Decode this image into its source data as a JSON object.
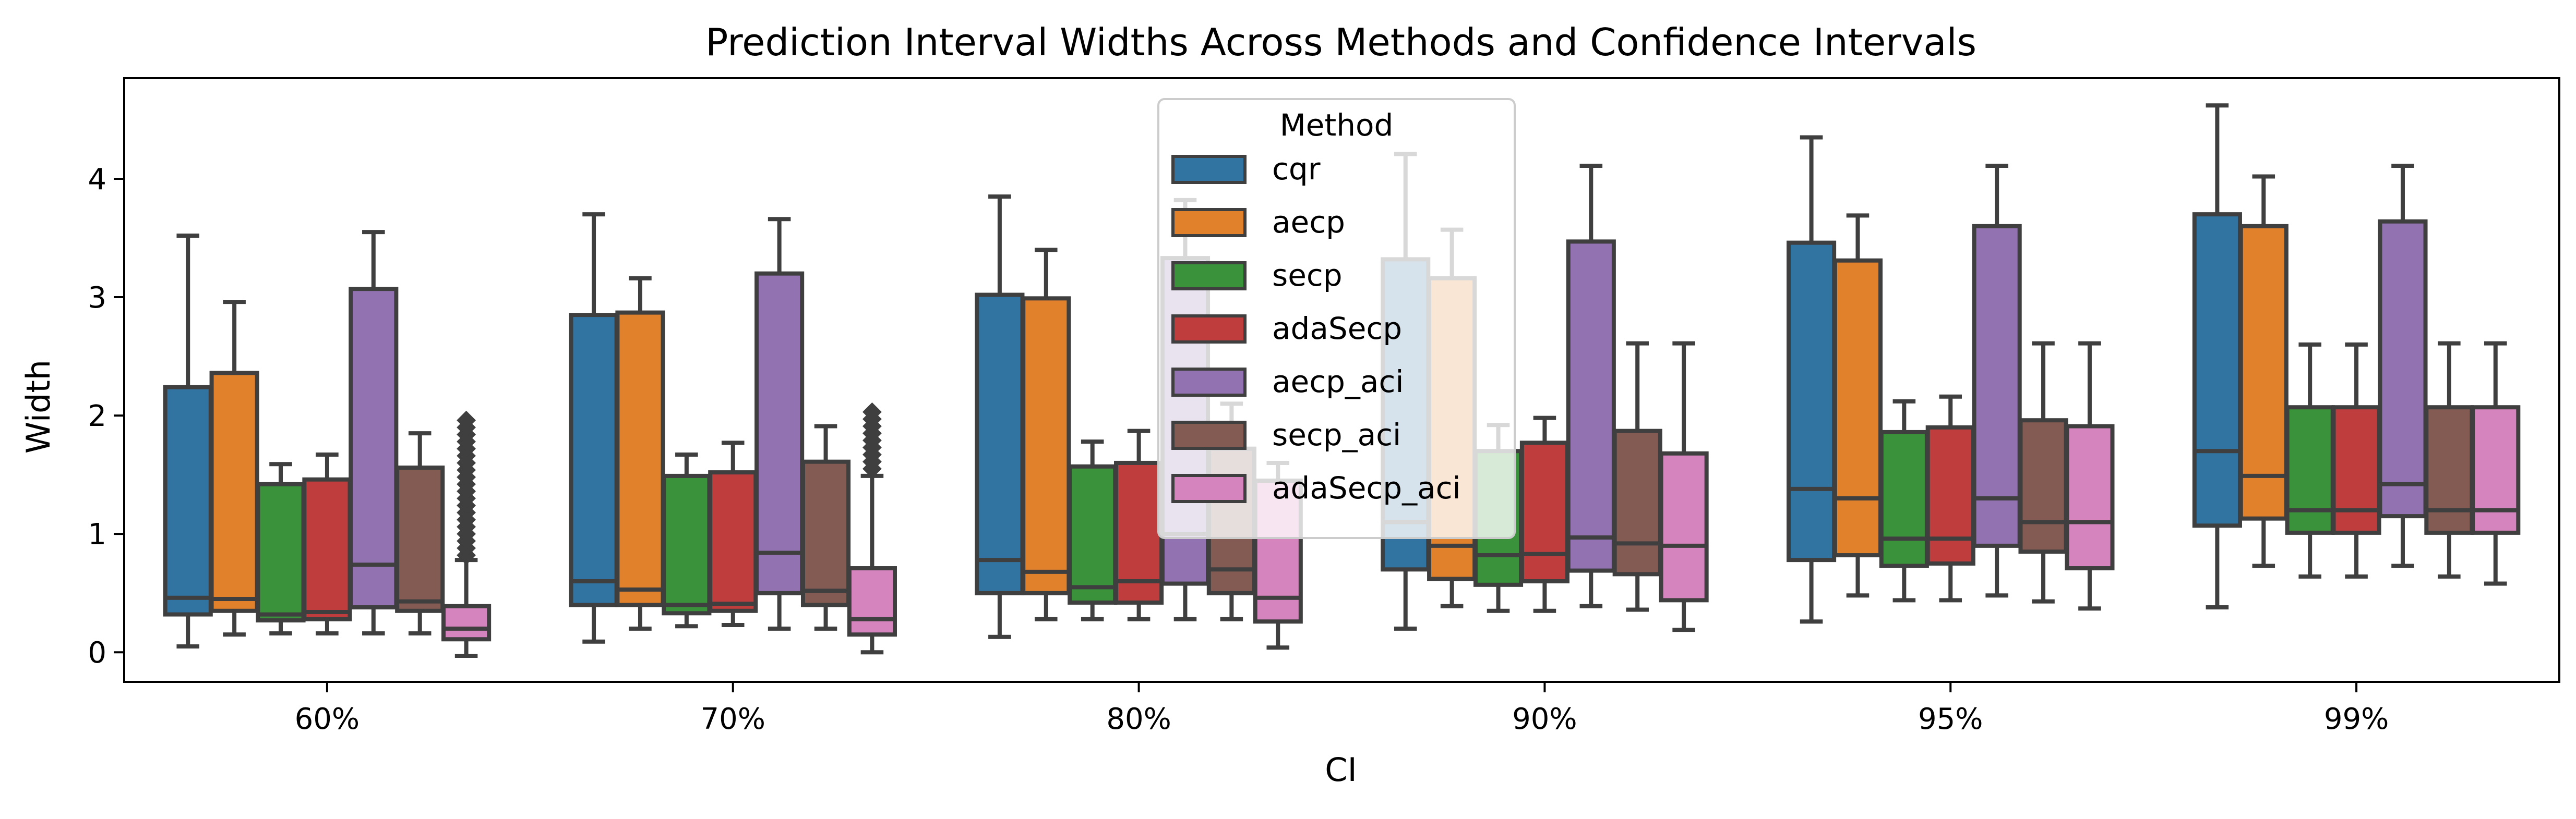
{
  "chart_data": {
    "type": "boxplot",
    "title": "Prediction Interval Widths Across Methods and Confidence Intervals",
    "xlabel": "CI",
    "ylabel": "Width",
    "categories": [
      "60%",
      "70%",
      "80%",
      "90%",
      "95%",
      "99%"
    ],
    "ylim": [
      -0.25,
      4.85
    ],
    "yticks": [
      0,
      1,
      2,
      3,
      4
    ],
    "grid": false,
    "legend": {
      "title": "Method",
      "placement": "upper-center"
    },
    "series": [
      {
        "name": "cqr",
        "color": "#3274a1",
        "boxes": [
          {
            "whislo": 0.05,
            "q1": 0.32,
            "med": 0.46,
            "q3": 2.24,
            "whishi": 3.52
          },
          {
            "whislo": 0.09,
            "q1": 0.4,
            "med": 0.6,
            "q3": 2.85,
            "whishi": 3.7
          },
          {
            "whislo": 0.13,
            "q1": 0.5,
            "med": 0.78,
            "q3": 3.02,
            "whishi": 3.85
          },
          {
            "whislo": 0.2,
            "q1": 0.7,
            "med": 1.1,
            "q3": 3.32,
            "whishi": 4.21
          },
          {
            "whislo": 0.26,
            "q1": 0.78,
            "med": 1.38,
            "q3": 3.46,
            "whishi": 4.35
          },
          {
            "whislo": 0.38,
            "q1": 1.07,
            "med": 1.7,
            "q3": 3.7,
            "whishi": 4.62
          }
        ]
      },
      {
        "name": "aecp",
        "color": "#e1812c",
        "boxes": [
          {
            "whislo": 0.15,
            "q1": 0.35,
            "med": 0.45,
            "q3": 2.36,
            "whishi": 2.96
          },
          {
            "whislo": 0.2,
            "q1": 0.4,
            "med": 0.53,
            "q3": 2.87,
            "whishi": 3.16
          },
          {
            "whislo": 0.28,
            "q1": 0.5,
            "med": 0.68,
            "q3": 2.99,
            "whishi": 3.4
          },
          {
            "whislo": 0.39,
            "q1": 0.62,
            "med": 0.9,
            "q3": 3.16,
            "whishi": 3.57
          },
          {
            "whislo": 0.48,
            "q1": 0.82,
            "med": 1.3,
            "q3": 3.31,
            "whishi": 3.69
          },
          {
            "whislo": 0.73,
            "q1": 1.13,
            "med": 1.49,
            "q3": 3.6,
            "whishi": 4.02
          }
        ]
      },
      {
        "name": "secp",
        "color": "#3a923a",
        "boxes": [
          {
            "whislo": 0.16,
            "q1": 0.27,
            "med": 0.32,
            "q3": 1.42,
            "whishi": 1.59
          },
          {
            "whislo": 0.22,
            "q1": 0.33,
            "med": 0.4,
            "q3": 1.49,
            "whishi": 1.67
          },
          {
            "whislo": 0.28,
            "q1": 0.42,
            "med": 0.55,
            "q3": 1.57,
            "whishi": 1.78
          },
          {
            "whislo": 0.35,
            "q1": 0.57,
            "med": 0.82,
            "q3": 1.7,
            "whishi": 1.92
          },
          {
            "whislo": 0.44,
            "q1": 0.73,
            "med": 0.96,
            "q3": 1.86,
            "whishi": 2.12
          },
          {
            "whislo": 0.64,
            "q1": 1.01,
            "med": 1.2,
            "q3": 2.07,
            "whishi": 2.6
          }
        ]
      },
      {
        "name": "adaSecp",
        "color": "#c03d3e",
        "boxes": [
          {
            "whislo": 0.16,
            "q1": 0.28,
            "med": 0.34,
            "q3": 1.46,
            "whishi": 1.67
          },
          {
            "whislo": 0.23,
            "q1": 0.35,
            "med": 0.41,
            "q3": 1.52,
            "whishi": 1.77
          },
          {
            "whislo": 0.28,
            "q1": 0.42,
            "med": 0.6,
            "q3": 1.6,
            "whishi": 1.87
          },
          {
            "whislo": 0.35,
            "q1": 0.6,
            "med": 0.83,
            "q3": 1.77,
            "whishi": 1.98
          },
          {
            "whislo": 0.44,
            "q1": 0.75,
            "med": 0.96,
            "q3": 1.9,
            "whishi": 2.16
          },
          {
            "whislo": 0.64,
            "q1": 1.01,
            "med": 1.2,
            "q3": 2.07,
            "whishi": 2.6
          }
        ]
      },
      {
        "name": "aecp_aci",
        "color": "#9372b2",
        "boxes": [
          {
            "whislo": 0.16,
            "q1": 0.38,
            "med": 0.74,
            "q3": 3.07,
            "whishi": 3.55
          },
          {
            "whislo": 0.2,
            "q1": 0.5,
            "med": 0.84,
            "q3": 3.2,
            "whishi": 3.66
          },
          {
            "whislo": 0.28,
            "q1": 0.58,
            "med": 1.0,
            "q3": 3.33,
            "whishi": 3.82
          },
          {
            "whislo": 0.39,
            "q1": 0.69,
            "med": 0.97,
            "q3": 3.47,
            "whishi": 4.11
          },
          {
            "whislo": 0.48,
            "q1": 0.9,
            "med": 1.3,
            "q3": 3.6,
            "whishi": 4.11
          },
          {
            "whislo": 0.73,
            "q1": 1.15,
            "med": 1.42,
            "q3": 3.64,
            "whishi": 4.11
          }
        ]
      },
      {
        "name": "secp_aci",
        "color": "#845b53",
        "boxes": [
          {
            "whislo": 0.16,
            "q1": 0.35,
            "med": 0.43,
            "q3": 1.56,
            "whishi": 1.85
          },
          {
            "whislo": 0.2,
            "q1": 0.4,
            "med": 0.52,
            "q3": 1.61,
            "whishi": 1.91
          },
          {
            "whislo": 0.28,
            "q1": 0.5,
            "med": 0.7,
            "q3": 1.72,
            "whishi": 2.1
          },
          {
            "whislo": 0.36,
            "q1": 0.66,
            "med": 0.92,
            "q3": 1.87,
            "whishi": 2.61
          },
          {
            "whislo": 0.43,
            "q1": 0.85,
            "med": 1.1,
            "q3": 1.96,
            "whishi": 2.61
          },
          {
            "whislo": 0.64,
            "q1": 1.01,
            "med": 1.2,
            "q3": 2.07,
            "whishi": 2.61
          }
        ]
      },
      {
        "name": "adaSecp_aci",
        "color": "#d684bd",
        "boxes": [
          {
            "whislo": -0.03,
            "q1": 0.11,
            "med": 0.2,
            "q3": 0.39,
            "whishi": 0.78,
            "fliers": [
              0.82,
              0.88,
              0.94,
              1.0,
              1.06,
              1.12,
              1.18,
              1.24,
              1.3,
              1.36,
              1.42,
              1.48,
              1.54,
              1.6,
              1.66,
              1.72,
              1.78,
              1.84,
              1.9,
              1.96
            ]
          },
          {
            "whislo": 0.0,
            "q1": 0.15,
            "med": 0.28,
            "q3": 0.71,
            "whishi": 1.49,
            "fliers": [
              1.55,
              1.61,
              1.67,
              1.73,
              1.79,
              1.85,
              1.91,
              1.97,
              2.03
            ]
          },
          {
            "whislo": 0.04,
            "q1": 0.26,
            "med": 0.46,
            "q3": 1.45,
            "whishi": 1.6
          },
          {
            "whislo": 0.19,
            "q1": 0.44,
            "med": 0.9,
            "q3": 1.68,
            "whishi": 2.61
          },
          {
            "whislo": 0.37,
            "q1": 0.71,
            "med": 1.1,
            "q3": 1.91,
            "whishi": 2.61
          },
          {
            "whislo": 0.58,
            "q1": 1.01,
            "med": 1.2,
            "q3": 2.07,
            "whishi": 2.61
          }
        ]
      }
    ]
  }
}
